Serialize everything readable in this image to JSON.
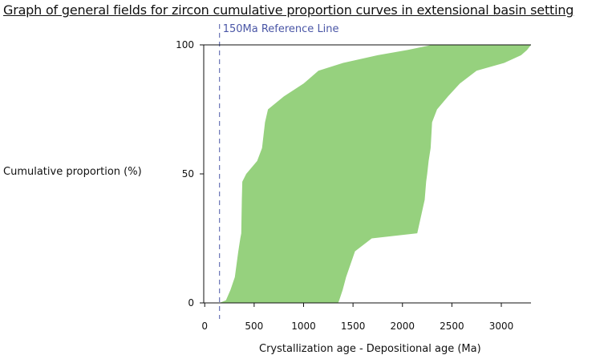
{
  "chart_data": {
    "type": "area",
    "title": "Graph of general fields for zircon cumulative proportion curves in extensional basin setting",
    "xlabel": "Crystallization age - Depositional age (Ma)",
    "ylabel": "Cumulative proportion (%)",
    "xlim": [
      -10,
      3300
    ],
    "ylim": [
      0,
      100
    ],
    "xticks": [
      0,
      500,
      1000,
      1500,
      2000,
      2500,
      3000
    ],
    "yticks": [
      0,
      50,
      100
    ],
    "grid": false,
    "reference_line": {
      "x": 150,
      "label": "150Ma Reference Line",
      "color": "#4a56a6"
    },
    "field_color": "#96d17e",
    "series": [
      {
        "values": [
          {
            "y": 0,
            "left": 150,
            "right": 1350
          },
          {
            "y": 1,
            "left": 215,
            "right": 1360
          },
          {
            "y": 5,
            "left": 260,
            "right": 1395
          },
          {
            "y": 10,
            "left": 305,
            "right": 1430
          },
          {
            "y": 20,
            "left": 340,
            "right": 1520
          },
          {
            "y": 25,
            "left": 360,
            "right": 1690
          },
          {
            "y": 27,
            "left": 370,
            "right": 2150
          },
          {
            "y": 40,
            "left": 375,
            "right": 2225
          },
          {
            "y": 47,
            "left": 380,
            "right": 2240
          },
          {
            "y": 50,
            "left": 420,
            "right": 2250
          },
          {
            "y": 55,
            "left": 530,
            "right": 2265
          },
          {
            "y": 60,
            "left": 580,
            "right": 2285
          },
          {
            "y": 70,
            "left": 610,
            "right": 2300
          },
          {
            "y": 75,
            "left": 640,
            "right": 2350
          },
          {
            "y": 80,
            "left": 800,
            "right": 2460
          },
          {
            "y": 85,
            "left": 1000,
            "right": 2580
          },
          {
            "y": 90,
            "left": 1150,
            "right": 2750
          },
          {
            "y": 93,
            "left": 1400,
            "right": 3030
          },
          {
            "y": 96,
            "left": 1750,
            "right": 3200
          },
          {
            "y": 98,
            "left": 2050,
            "right": 3260
          },
          {
            "y": 100,
            "left": 2300,
            "right": 3300
          }
        ]
      }
    ]
  }
}
